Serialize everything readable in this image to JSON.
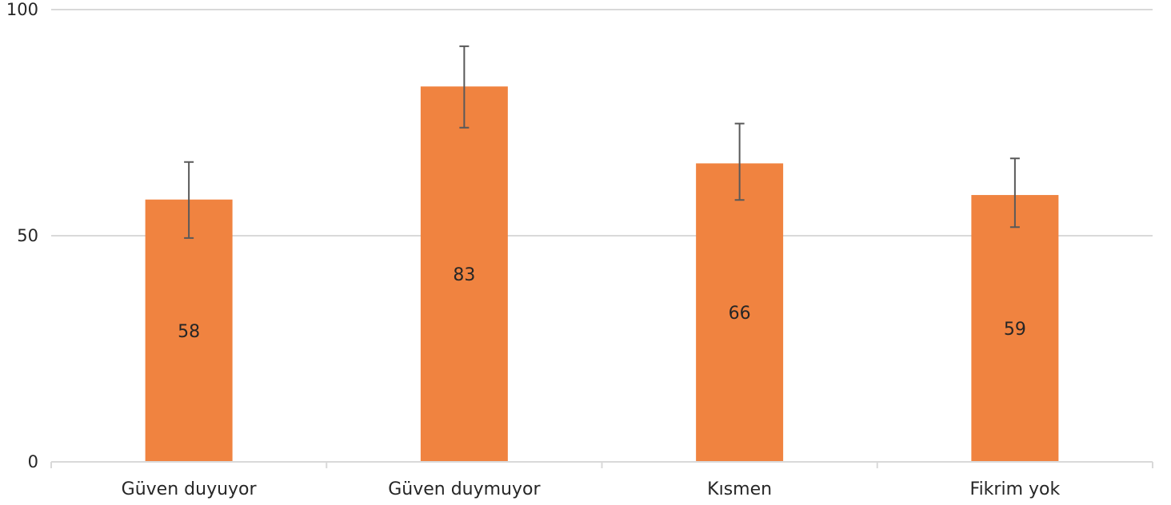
{
  "chart_data": {
    "type": "bar",
    "title": "",
    "xlabel": "",
    "ylabel": "",
    "categories": [
      "Güven duyuyor",
      "Güven duymuyor",
      "Kısmen",
      "Fikrim yok"
    ],
    "values": [
      58,
      83,
      66,
      59
    ],
    "data_labels": [
      "58",
      "83",
      "66",
      "59"
    ],
    "error_bars": [
      {
        "low": 49.5,
        "high": 66.3
      },
      {
        "low": 73.9,
        "high": 91.9
      },
      {
        "low": 57.9,
        "high": 74.8
      },
      {
        "low": 51.9,
        "high": 67.1
      }
    ],
    "ylim": [
      0,
      100
    ],
    "yticks": [
      0,
      50,
      100
    ],
    "ytick_labels": [
      "0",
      "50",
      "100"
    ],
    "grid": true,
    "legend": "none",
    "colors": {
      "bar": "#f08340",
      "grid": "#d9d9d9",
      "error_bar": "#595959",
      "text": "#262626"
    }
  }
}
